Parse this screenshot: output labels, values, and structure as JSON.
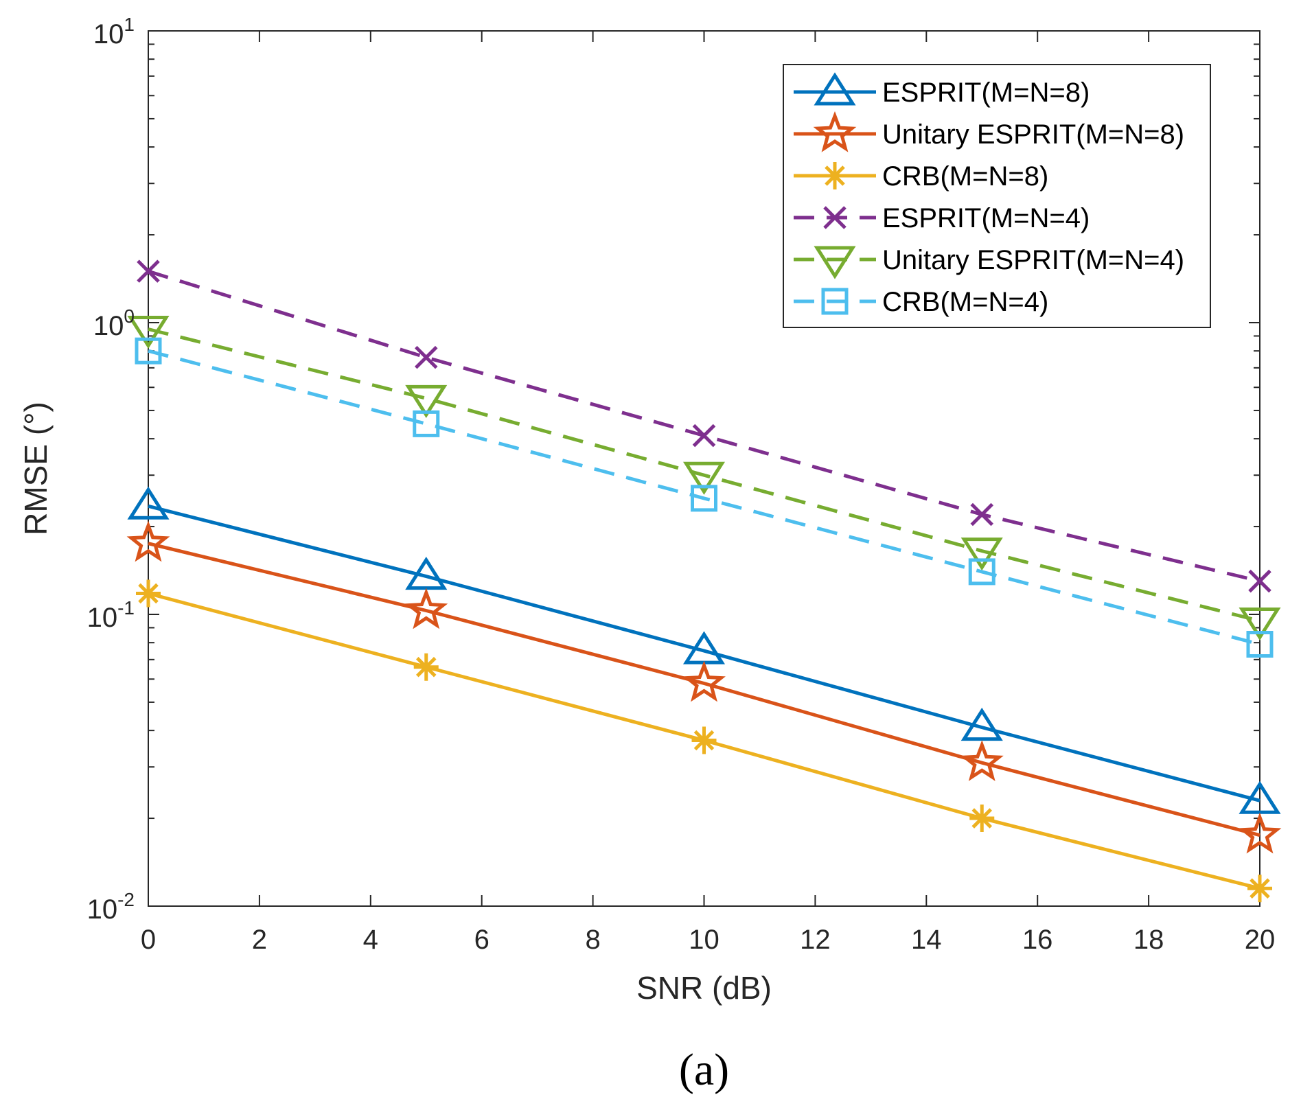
{
  "chart_data": {
    "type": "line",
    "title": "",
    "xlabel": "SNR (dB)",
    "ylabel": "RMSE (°)",
    "caption": "(a)",
    "yscale": "log",
    "xlim": [
      0,
      20
    ],
    "ylim": [
      0.01,
      10
    ],
    "xticks": [
      0,
      2,
      4,
      6,
      8,
      10,
      12,
      14,
      16,
      18,
      20
    ],
    "xtick_labels": [
      "0",
      "2",
      "4",
      "6",
      "8",
      "10",
      "12",
      "14",
      "16",
      "18",
      "20"
    ],
    "yticks": [
      {
        "value": 0.01,
        "base": "10",
        "exp": "-2"
      },
      {
        "value": 0.1,
        "base": "10",
        "exp": "-1"
      },
      {
        "value": 1,
        "base": "10",
        "exp": "0"
      },
      {
        "value": 10,
        "base": "10",
        "exp": "1"
      }
    ],
    "grid": false,
    "legend_position": "top-right",
    "x": [
      0,
      5,
      10,
      15,
      20
    ],
    "series": [
      {
        "name": "ESPRIT(M=N=8)",
        "values": [
          0.235,
          0.135,
          0.075,
          0.041,
          0.023
        ],
        "color": "#0072BD",
        "dash": "solid",
        "marker": "triangle-up"
      },
      {
        "name": "Unitary ESPRIT(M=N=8)",
        "values": [
          0.175,
          0.103,
          0.058,
          0.031,
          0.0175
        ],
        "color": "#D95319",
        "dash": "solid",
        "marker": "star"
      },
      {
        "name": "CRB(M=N=8)",
        "values": [
          0.118,
          0.066,
          0.037,
          0.02,
          0.0115
        ],
        "color": "#EDB120",
        "dash": "solid",
        "marker": "asterisk"
      },
      {
        "name": "ESPRIT(M=N=4)",
        "values": [
          1.5,
          0.76,
          0.41,
          0.22,
          0.13
        ],
        "color": "#7E2F8E",
        "dash": "dashed",
        "marker": "x"
      },
      {
        "name": "Unitary ESPRIT(M=N=4)",
        "values": [
          0.95,
          0.55,
          0.3,
          0.165,
          0.095
        ],
        "color": "#77AC30",
        "dash": "dashed",
        "marker": "triangle-down"
      },
      {
        "name": "CRB(M=N=4)",
        "values": [
          0.8,
          0.45,
          0.25,
          0.14,
          0.079
        ],
        "color": "#4DBEEE",
        "dash": "dashed",
        "marker": "square"
      }
    ]
  }
}
